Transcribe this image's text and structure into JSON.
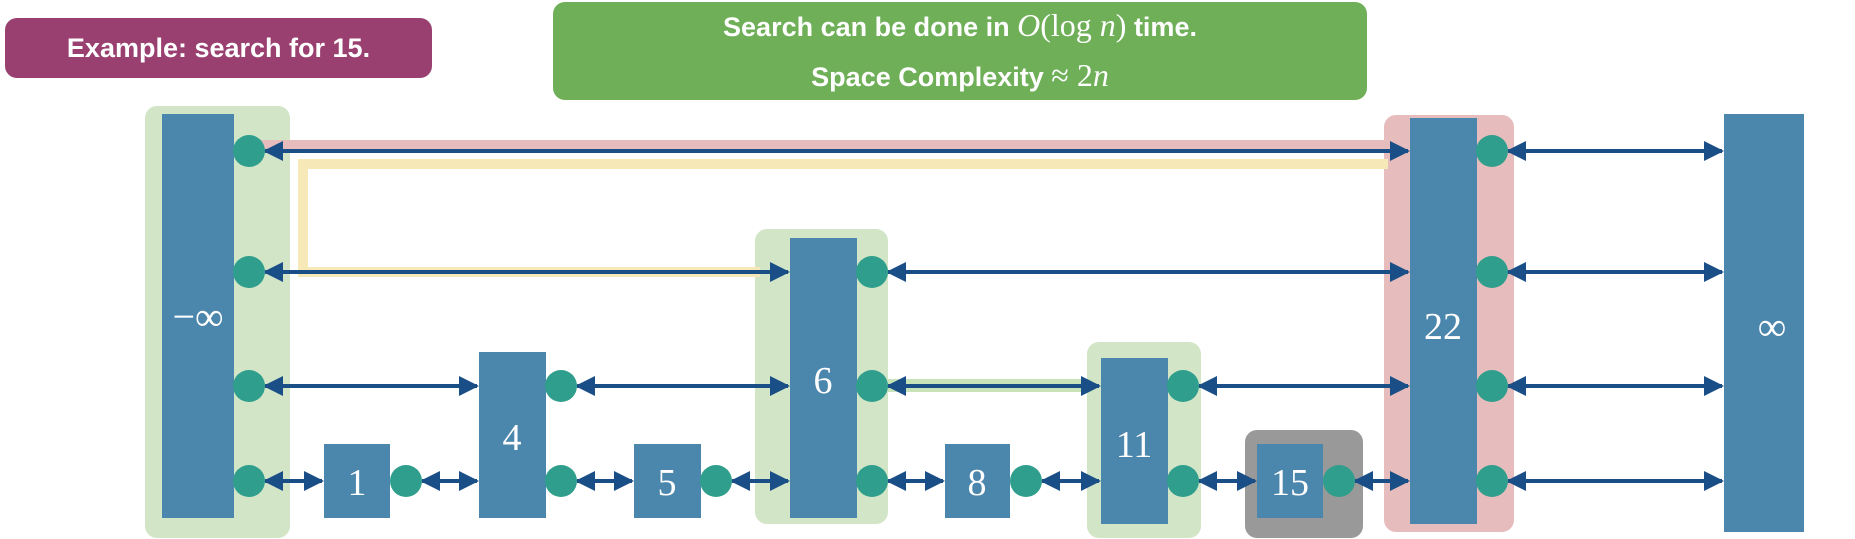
{
  "example_badge": {
    "text": "Example: search for 15."
  },
  "info_badge": {
    "line1_prefix": "Search can be done in ",
    "line1_math_O": "O",
    "line1_math_paren_open": "(",
    "line1_math_log": "log",
    "line1_math_n": "n",
    "line1_math_paren_close": ")",
    "line1_suffix": " time.",
    "line2_prefix": "Space Complexity ",
    "line2_math_approx": "≈ 2",
    "line2_math_n": "n"
  },
  "skip_list": {
    "search_target": "15",
    "nodes": [
      {
        "id": "neg-inf",
        "label": "−∞",
        "levels": 4,
        "highlight": "green"
      },
      {
        "id": "n1",
        "label": "1",
        "levels": 1,
        "highlight": "none"
      },
      {
        "id": "n4",
        "label": "4",
        "levels": 2,
        "highlight": "none"
      },
      {
        "id": "n5",
        "label": "5",
        "levels": 1,
        "highlight": "none"
      },
      {
        "id": "n6",
        "label": "6",
        "levels": 3,
        "highlight": "green"
      },
      {
        "id": "n8",
        "label": "8",
        "levels": 1,
        "highlight": "none"
      },
      {
        "id": "n11",
        "label": "11",
        "levels": 2,
        "highlight": "green"
      },
      {
        "id": "n15",
        "label": "15",
        "levels": 1,
        "highlight": "gray"
      },
      {
        "id": "n22",
        "label": "22",
        "levels": 4,
        "highlight": "red"
      },
      {
        "id": "pos-inf",
        "label": "∞",
        "levels": 4,
        "highlight": "none"
      }
    ]
  },
  "colors": {
    "node_fill": "#4b86ad",
    "pointer_dot": "#2f9e8c",
    "arrow": "#1a4e86",
    "highlight_green": "#d2e6c7",
    "highlight_red": "#e6bcbc",
    "highlight_gray": "#999999",
    "path_yellow": "#f7e8b8",
    "path_green": "#c8e3b8",
    "badge_purple": "#994070",
    "badge_green": "#6eaf58"
  }
}
